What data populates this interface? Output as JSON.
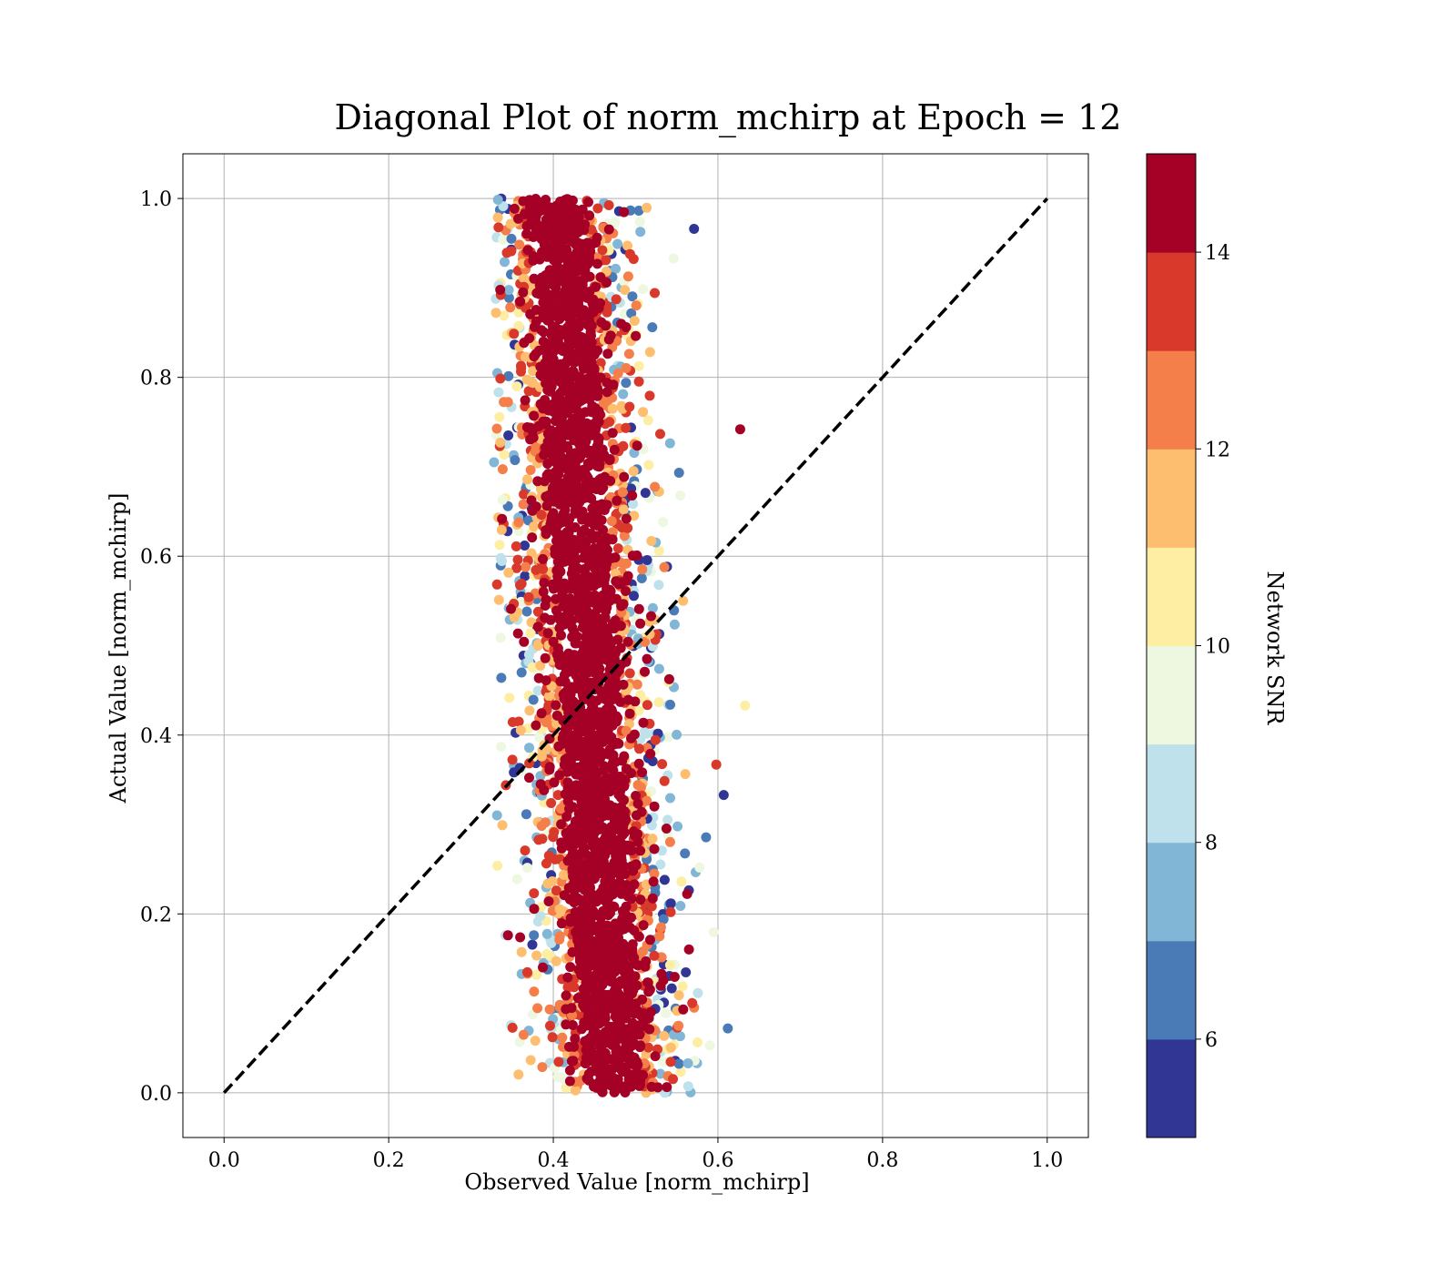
{
  "chart_data": {
    "type": "scatter",
    "title": "Diagonal Plot of norm_mchirp at Epoch = 12",
    "xlabel": "Observed Value [norm_mchirp]",
    "ylabel": "Actual Value [norm_mchirp]",
    "xlim": [
      -0.05,
      1.05
    ],
    "ylim": [
      -0.05,
      1.05
    ],
    "xticks": [
      "0.0",
      "0.2",
      "0.4",
      "0.6",
      "0.8",
      "1.0"
    ],
    "yticks": [
      "0.0",
      "0.2",
      "0.4",
      "0.6",
      "0.8",
      "1.0"
    ],
    "grid": true,
    "reference_line": {
      "style": "dashed",
      "color": "#000000",
      "x": [
        0,
        1
      ],
      "y": [
        0,
        1
      ]
    },
    "colorbar": {
      "label": "Network SNR",
      "range": [
        5,
        15
      ],
      "ticks": [
        "6",
        "8",
        "10",
        "12",
        "14"
      ],
      "bins": [
        {
          "from": 5,
          "to": 6,
          "color": "#313695"
        },
        {
          "from": 6,
          "to": 7,
          "color": "#4a7bb7"
        },
        {
          "from": 7,
          "to": 8,
          "color": "#82b6d6"
        },
        {
          "from": 8,
          "to": 9,
          "color": "#bfe1eb"
        },
        {
          "from": 9,
          "to": 10,
          "color": "#eef7e0"
        },
        {
          "from": 10,
          "to": 11,
          "color": "#fdeea3"
        },
        {
          "from": 11,
          "to": 12,
          "color": "#fdbe70"
        },
        {
          "from": 12,
          "to": 13,
          "color": "#f57f4a"
        },
        {
          "from": 13,
          "to": 14,
          "color": "#d8392b"
        },
        {
          "from": 14,
          "to": 15,
          "color": "#a50026"
        }
      ]
    },
    "points_summary": {
      "x_range_observed": [
        0.33,
        0.63
      ],
      "x_center": 0.44,
      "y_range": [
        0.0,
        1.0
      ],
      "dominant_snr": 15,
      "notable_points": [
        {
          "x": 0.627,
          "y": 0.742,
          "snr": 15
        },
        {
          "x": 0.633,
          "y": 0.433,
          "snr": 10.5
        },
        {
          "x": 0.607,
          "y": 0.333,
          "snr": 5.5
        },
        {
          "x": 0.612,
          "y": 0.072,
          "snr": 6.5
        },
        {
          "x": 0.598,
          "y": 0.367,
          "snr": 13.5
        },
        {
          "x": 0.328,
          "y": 0.705,
          "snr": 7.5
        },
        {
          "x": 0.571,
          "y": 0.966,
          "snr": 5.5
        }
      ]
    }
  }
}
